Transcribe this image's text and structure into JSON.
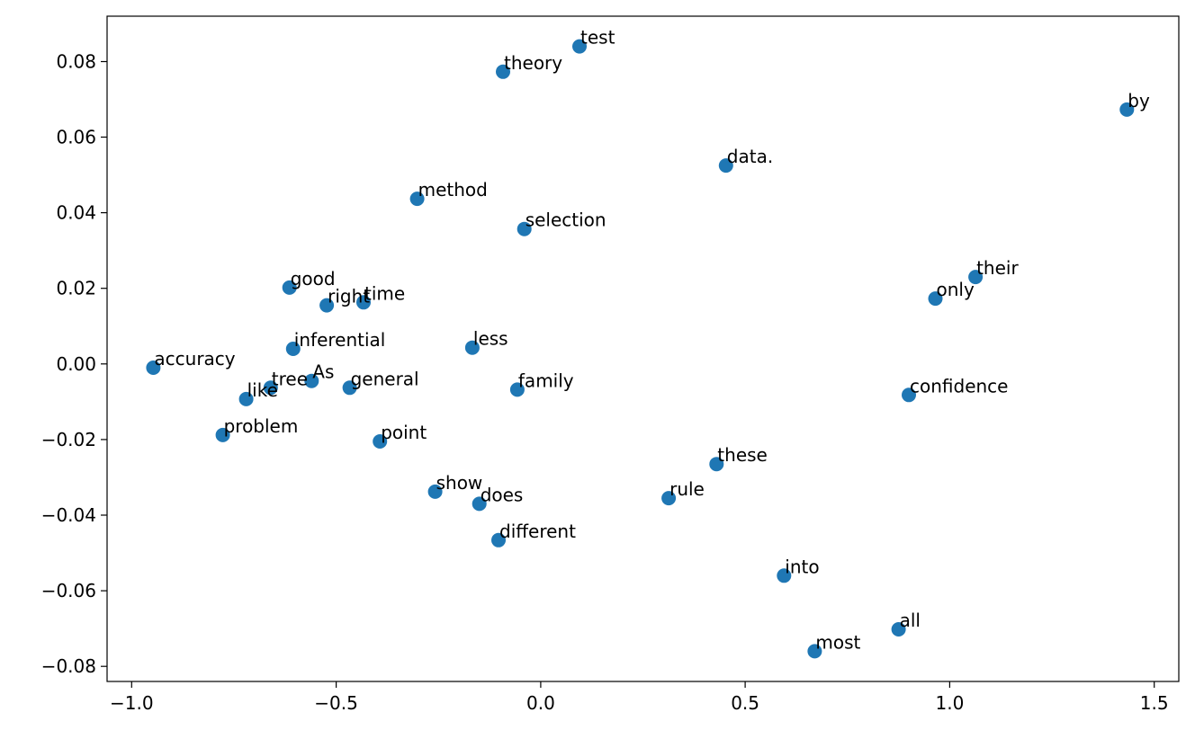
{
  "chart_data": {
    "type": "scatter",
    "title": "",
    "xlabel": "",
    "ylabel": "",
    "xlim": [
      -1.06,
      1.56
    ],
    "ylim": [
      -0.084,
      0.092
    ],
    "xticks": [
      -1.0,
      -0.5,
      0.0,
      0.5,
      1.0,
      1.5
    ],
    "xtick_labels": [
      "−1.0",
      "−0.5",
      "0.0",
      "0.5",
      "1.0",
      "1.5"
    ],
    "yticks": [
      -0.08,
      -0.06,
      -0.04,
      -0.02,
      0.0,
      0.02,
      0.04,
      0.06,
      0.08
    ],
    "ytick_labels": [
      "−0.08",
      "−0.06",
      "−0.04",
      "−0.02",
      "0.00",
      "0.02",
      "0.04",
      "0.06",
      "0.08"
    ],
    "grid": false,
    "marker_color": "#1f77b4",
    "points": [
      {
        "label": "test",
        "x": 0.095,
        "y": 0.084
      },
      {
        "label": "theory",
        "x": -0.092,
        "y": 0.0773
      },
      {
        "label": "by",
        "x": 1.433,
        "y": 0.0673
      },
      {
        "label": "data.",
        "x": 0.453,
        "y": 0.0525
      },
      {
        "label": "method",
        "x": -0.302,
        "y": 0.0437
      },
      {
        "label": "selection",
        "x": -0.04,
        "y": 0.0357
      },
      {
        "label": "their",
        "x": 1.063,
        "y": 0.023
      },
      {
        "label": "good",
        "x": -0.614,
        "y": 0.0202
      },
      {
        "label": "only",
        "x": 0.965,
        "y": 0.0173
      },
      {
        "label": "right",
        "x": -0.523,
        "y": 0.0155
      },
      {
        "label": "time",
        "x": -0.433,
        "y": 0.0163
      },
      {
        "label": "inferential",
        "x": -0.605,
        "y": 0.004
      },
      {
        "label": "less",
        "x": -0.167,
        "y": 0.0043
      },
      {
        "label": "accuracy",
        "x": -0.947,
        "y": -0.001
      },
      {
        "label": "As",
        "x": -0.56,
        "y": -0.0045
      },
      {
        "label": "tree",
        "x": -0.66,
        "y": -0.0063
      },
      {
        "label": "general",
        "x": -0.467,
        "y": -0.0063
      },
      {
        "label": "family",
        "x": -0.057,
        "y": -0.0068
      },
      {
        "label": "like",
        "x": -0.72,
        "y": -0.0093
      },
      {
        "label": "confidence",
        "x": 0.9,
        "y": -0.0082
      },
      {
        "label": "problem",
        "x": -0.777,
        "y": -0.0188
      },
      {
        "label": "point",
        "x": -0.393,
        "y": -0.0205
      },
      {
        "label": "these",
        "x": 0.43,
        "y": -0.0265
      },
      {
        "label": "show",
        "x": -0.258,
        "y": -0.0338
      },
      {
        "label": "does",
        "x": -0.15,
        "y": -0.037
      },
      {
        "label": "rule",
        "x": 0.313,
        "y": -0.0355
      },
      {
        "label": "different",
        "x": -0.103,
        "y": -0.0466
      },
      {
        "label": "into",
        "x": 0.595,
        "y": -0.056
      },
      {
        "label": "all",
        "x": 0.875,
        "y": -0.0702
      },
      {
        "label": "most",
        "x": 0.67,
        "y": -0.076
      }
    ]
  }
}
